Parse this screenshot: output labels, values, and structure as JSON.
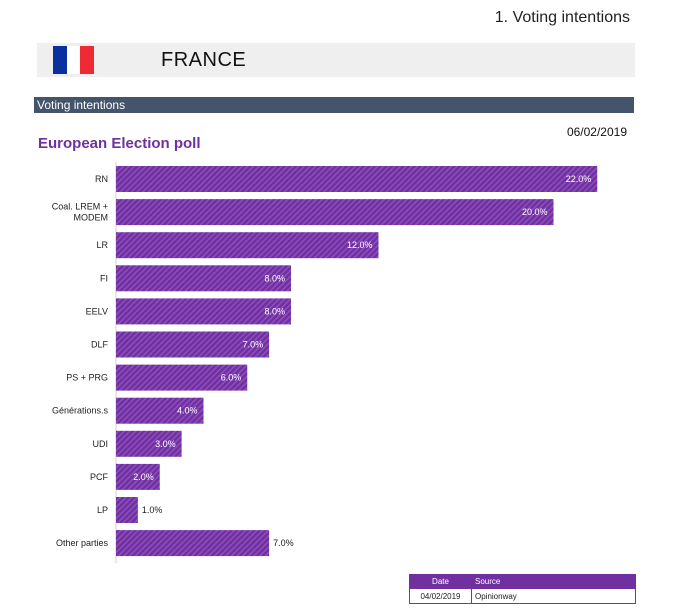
{
  "header": {
    "title": "1. Voting intentions"
  },
  "country": {
    "name": "FRANCE",
    "flag_colors": [
      "#0a2f9e",
      "#ffffff",
      "#ee2a35"
    ]
  },
  "section": {
    "label": "Voting intentions"
  },
  "poll": {
    "date": "06/02/2019"
  },
  "colors": {
    "bar": "#7030a0",
    "bar_stripe": "#8e4fbe",
    "section_bar": "#44546a"
  },
  "chart_data": {
    "type": "bar",
    "orientation": "horizontal",
    "title": "European Election poll",
    "categories": [
      "RN",
      "Coal. LREM + MODEM",
      "LR",
      "FI",
      "EELV",
      "DLF",
      "PS + PRG",
      "Générations.s",
      "UDI",
      "PCF",
      "LP",
      "Other parties"
    ],
    "category_lines": [
      [
        "RN"
      ],
      [
        "Coal. LREM +",
        "MODEM"
      ],
      [
        "LR"
      ],
      [
        "FI"
      ],
      [
        "EELV"
      ],
      [
        "DLF"
      ],
      [
        "PS + PRG"
      ],
      [
        "Générations.s"
      ],
      [
        "UDI"
      ],
      [
        "PCF"
      ],
      [
        "LP"
      ],
      [
        "Other parties"
      ]
    ],
    "values": [
      22.0,
      20.0,
      12.0,
      8.0,
      8.0,
      7.0,
      6.0,
      4.0,
      3.0,
      2.0,
      1.0,
      7.0
    ],
    "value_labels": [
      "22.0%",
      "20.0%",
      "12.0%",
      "8.0%",
      "8.0%",
      "7.0%",
      "6.0%",
      "4.0%",
      "3.0%",
      "2.0%",
      "1.0%",
      "7.0%"
    ],
    "label_inside": [
      true,
      true,
      true,
      true,
      true,
      true,
      true,
      true,
      true,
      true,
      false,
      false
    ],
    "xlim": [
      0,
      24
    ],
    "grid": false,
    "legend": "none"
  },
  "source_table": {
    "headers": {
      "date": "Date",
      "source": "Source"
    },
    "row": {
      "date": "04/02/2019",
      "source": "Opinionway"
    }
  }
}
